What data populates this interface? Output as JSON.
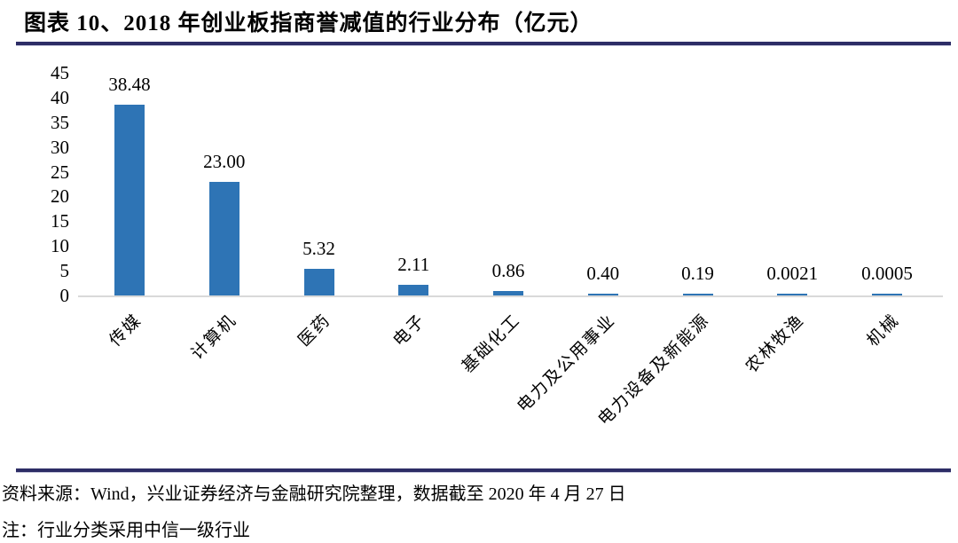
{
  "header": {
    "title": "图表 10、2018 年创业板指商誉减值的行业分布（亿元）"
  },
  "chart_data": {
    "type": "bar",
    "title": "2018 年创业板指商誉减值的行业分布（亿元）",
    "unit": "亿元",
    "categories": [
      "传媒",
      "计算机",
      "医药",
      "电子",
      "基础化工",
      "电力及公用事业",
      "电力设备及新能源",
      "农林牧渔",
      "机械"
    ],
    "values": [
      38.48,
      23.0,
      5.32,
      2.11,
      0.86,
      0.4,
      0.19,
      0.0021,
      0.0005
    ],
    "value_labels": [
      "38.48",
      "23.00",
      "5.32",
      "2.11",
      "0.86",
      "0.40",
      "0.19",
      "0.0021",
      "0.0005"
    ],
    "xlabel": "",
    "ylabel": "",
    "ylim": [
      0,
      45
    ],
    "yticks": [
      0,
      5,
      10,
      15,
      20,
      25,
      30,
      35,
      40,
      45
    ],
    "grid": false,
    "legend": false,
    "x_label_rotation_deg": 45,
    "bar_color": "#2E74B5",
    "baseline_color": "#D9D9D9"
  },
  "footer": {
    "source_line": "资料来源：Wind，兴业证券经济与金融研究院整理，数据截至 2020 年 4 月 27 日",
    "note_line": "注：行业分类采用中信一级行业"
  },
  "colors": {
    "rule_navy": "#2D2D66",
    "bar_blue": "#2E74B5",
    "baseline_gray": "#D9D9D9",
    "text_black": "#000000"
  }
}
